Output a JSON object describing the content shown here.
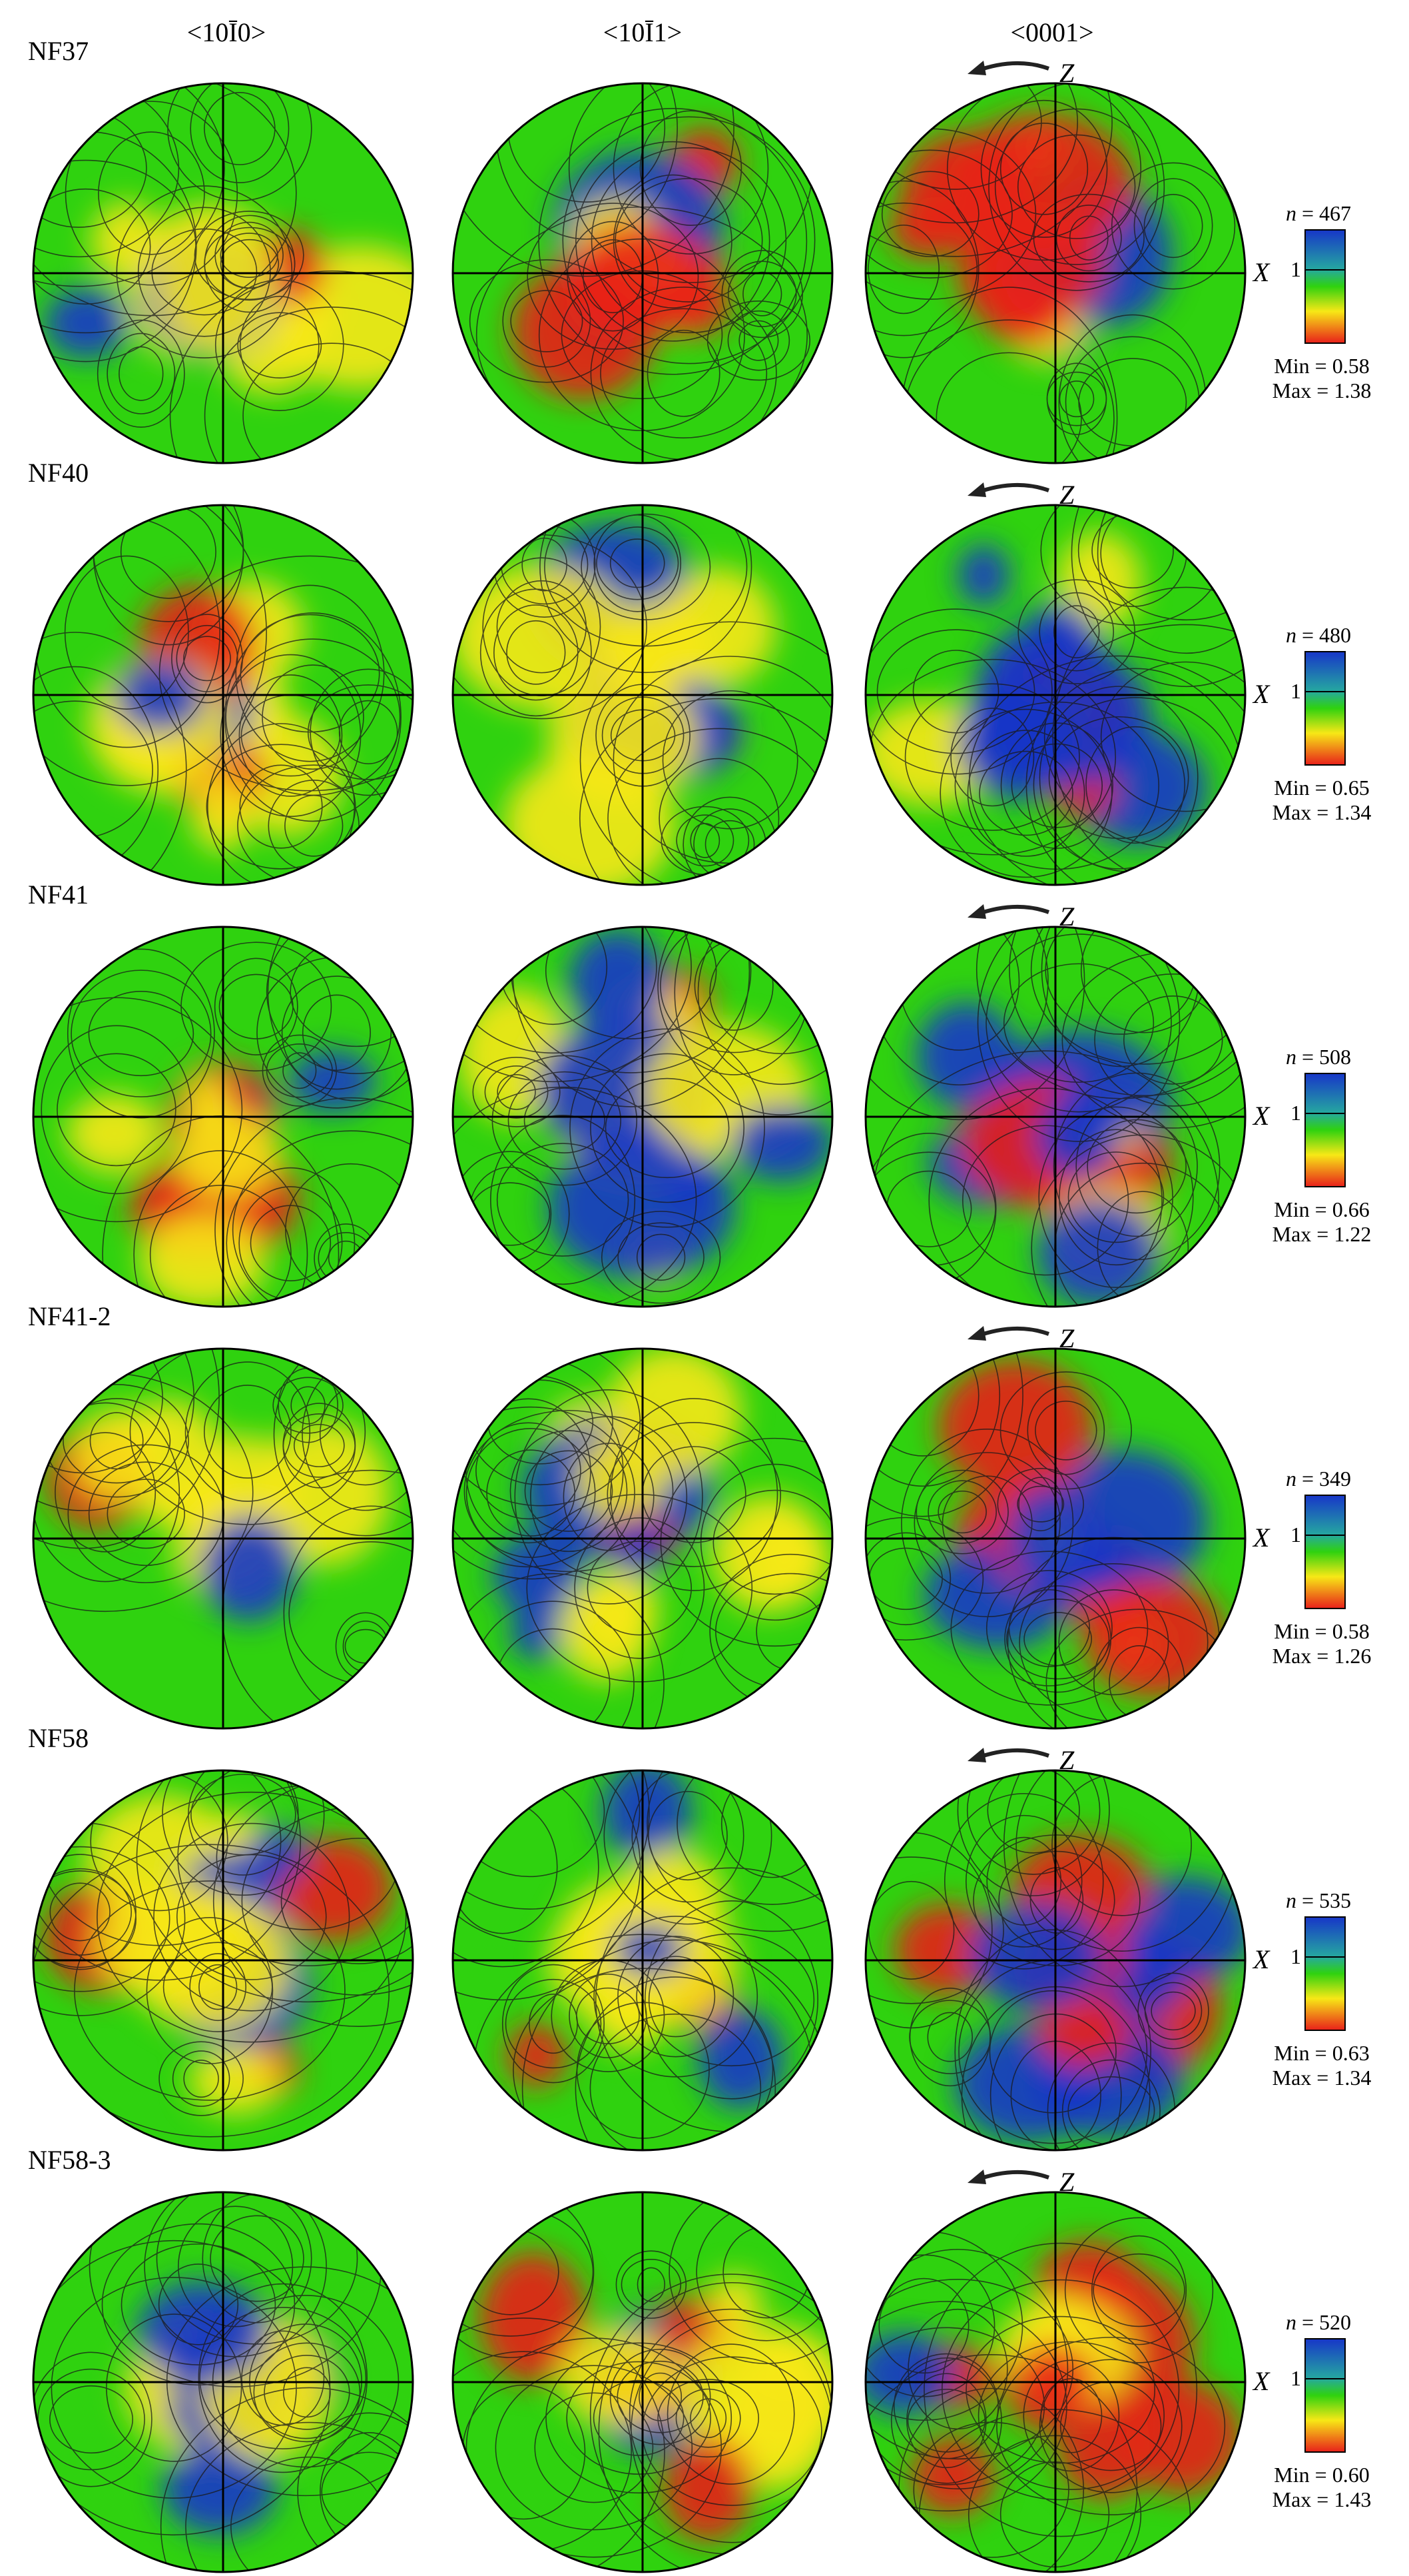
{
  "columns": [
    "<10Ī0>",
    "<10Ī1>",
    "<0001>"
  ],
  "column_marks": [
    "<10",
    "1",
    "0>",
    "<10",
    "1",
    "1>"
  ],
  "axis_labels": {
    "z": "Z",
    "x": "X"
  },
  "legend_one_label": "1",
  "n_prefix": "n",
  "colors": {
    "low": "#e8201a",
    "mid_low": "#f7e816",
    "mid": "#2fd20f",
    "high": "#1736c8"
  },
  "rows": [
    {
      "label": "NF37",
      "n": "= 467",
      "min": "Min = 0.58",
      "max": "Max = 1.38"
    },
    {
      "label": "NF40",
      "n": "= 480",
      "min": "Min = 0.65",
      "max": "Max = 1.34"
    },
    {
      "label": "NF41",
      "n": "= 508",
      "min": "Min = 0.66",
      "max": "Max = 1.22"
    },
    {
      "label": "NF41-2",
      "n": "= 349",
      "min": "Min = 0.58",
      "max": "Max = 1.26"
    },
    {
      "label": "NF58",
      "n": "= 535",
      "min": "Min = 0.63",
      "max": "Max = 1.34"
    },
    {
      "label": "NF58-3",
      "n": "= 520",
      "min": "Min = 0.60",
      "max": "Max = 1.43"
    }
  ]
}
